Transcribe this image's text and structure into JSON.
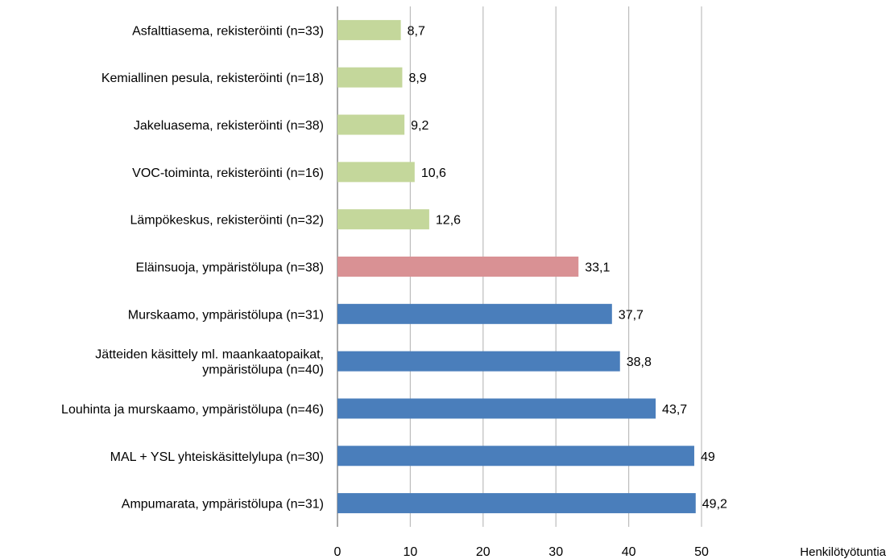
{
  "chart_data": {
    "type": "bar",
    "orientation": "horizontal",
    "categories": [
      "Asfalttiasema, rekisteröinti (n=33)",
      "Kemiallinen pesula, rekisteröinti (n=18)",
      "Jakeluasema, rekisteröinti (n=38)",
      "VOC-toiminta, rekisteröinti (n=16)",
      "Lämpökeskus, rekisteröinti (n=32)",
      "Eläinsuoja, ympäristölupa (n=38)",
      "Murskaamo, ympäristölupa (n=31)",
      "Jätteiden käsittely ml. maankaatopaikat, ympäristölupa (n=40)",
      "Louhinta ja murskaamo, ympäristölupa (n=46)",
      "MAL + YSL yhteiskäsittelylupa (n=30)",
      "Ampumarata, ympäristölupa (n=31)"
    ],
    "category_lines": [
      [
        "Asfalttiasema, rekisteröinti (n=33)"
      ],
      [
        "Kemiallinen pesula, rekisteröinti (n=18)"
      ],
      [
        "Jakeluasema, rekisteröinti (n=38)"
      ],
      [
        "VOC-toiminta, rekisteröinti (n=16)"
      ],
      [
        "Lämpökeskus, rekisteröinti (n=32)"
      ],
      [
        "Eläinsuoja, ympäristölupa (n=38)"
      ],
      [
        "Murskaamo, ympäristölupa (n=31)"
      ],
      [
        "Jätteiden käsittely ml. maankaatopaikat,",
        "ympäristölupa (n=40)"
      ],
      [
        "Louhinta ja murskaamo, ympäristölupa (n=46)"
      ],
      [
        "MAL + YSL yhteiskäsittelylupa (n=30)"
      ],
      [
        "Ampumarata, ympäristölupa (n=31)"
      ]
    ],
    "values": [
      8.7,
      8.9,
      9.2,
      10.6,
      12.6,
      33.1,
      37.7,
      38.8,
      43.7,
      49,
      49.2
    ],
    "value_labels": [
      "8,7",
      "8,9",
      "9,2",
      "10,6",
      "12,6",
      "33,1",
      "37,7",
      "38,8",
      "43,7",
      "49",
      "49,2"
    ],
    "bar_colors": [
      "#c4d79b",
      "#c4d79b",
      "#c4d79b",
      "#c4d79b",
      "#c4d79b",
      "#d99194",
      "#4a7ebb",
      "#4a7ebb",
      "#4a7ebb",
      "#4a7ebb",
      "#4a7ebb"
    ],
    "xlim": [
      0,
      50
    ],
    "xticks": [
      0,
      10,
      20,
      30,
      40,
      50
    ],
    "xlabel": "Henkilötyötuntia",
    "title": "",
    "ylabel": "",
    "grid": true,
    "legend": "none"
  }
}
